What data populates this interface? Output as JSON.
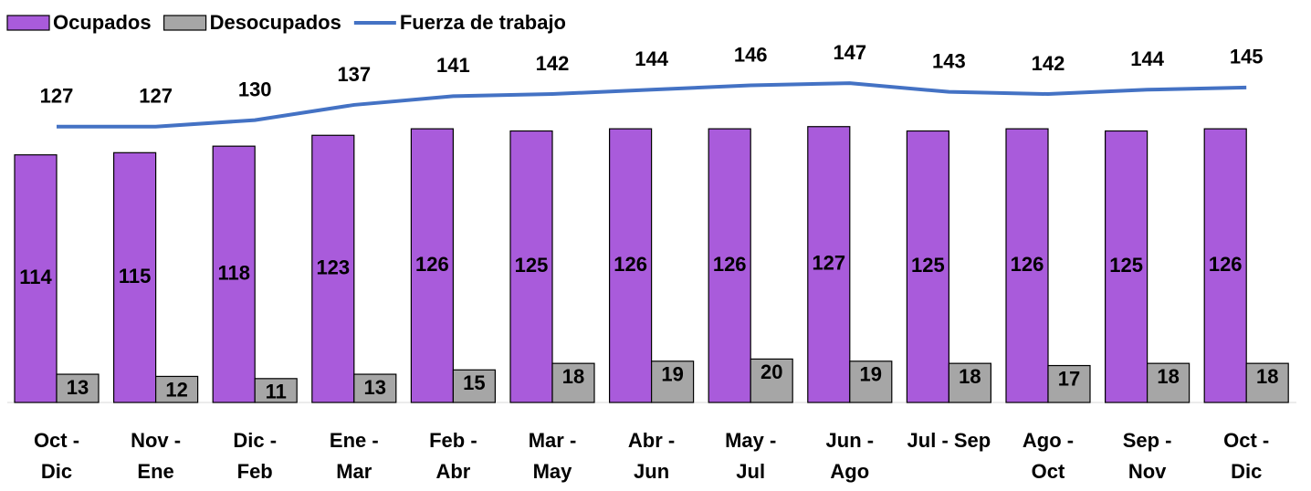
{
  "chart_data": {
    "type": "bar",
    "categories": [
      "Oct -\nDic",
      "Nov -\nEne",
      "Dic  -\nFeb",
      "Ene -\nMar",
      "Feb -\nAbr",
      "Mar -\nMay",
      "Abr -\nJun",
      "May -\nJul",
      "Jun -\nAgo",
      "Jul - Sep",
      "Ago -\nOct",
      "Sep -\nNov",
      "Oct -\nDic"
    ],
    "series": [
      {
        "name": "Ocupados",
        "type": "bar",
        "color": "#a95bdb",
        "values": [
          114,
          115,
          118,
          123,
          126,
          125,
          126,
          126,
          127,
          125,
          126,
          125,
          126
        ]
      },
      {
        "name": "Desocupados",
        "type": "bar",
        "color": "#a6a6a6",
        "values": [
          13,
          12,
          11,
          13,
          15,
          18,
          19,
          20,
          19,
          18,
          17,
          18,
          18
        ]
      },
      {
        "name": "Fuerza de trabajo",
        "type": "line",
        "color": "#4472c4",
        "values": [
          127,
          127,
          130,
          137,
          141,
          142,
          144,
          146,
          147,
          143,
          142,
          144,
          145
        ]
      }
    ],
    "ylim": [
      0,
      150
    ],
    "legend": "top-left"
  }
}
